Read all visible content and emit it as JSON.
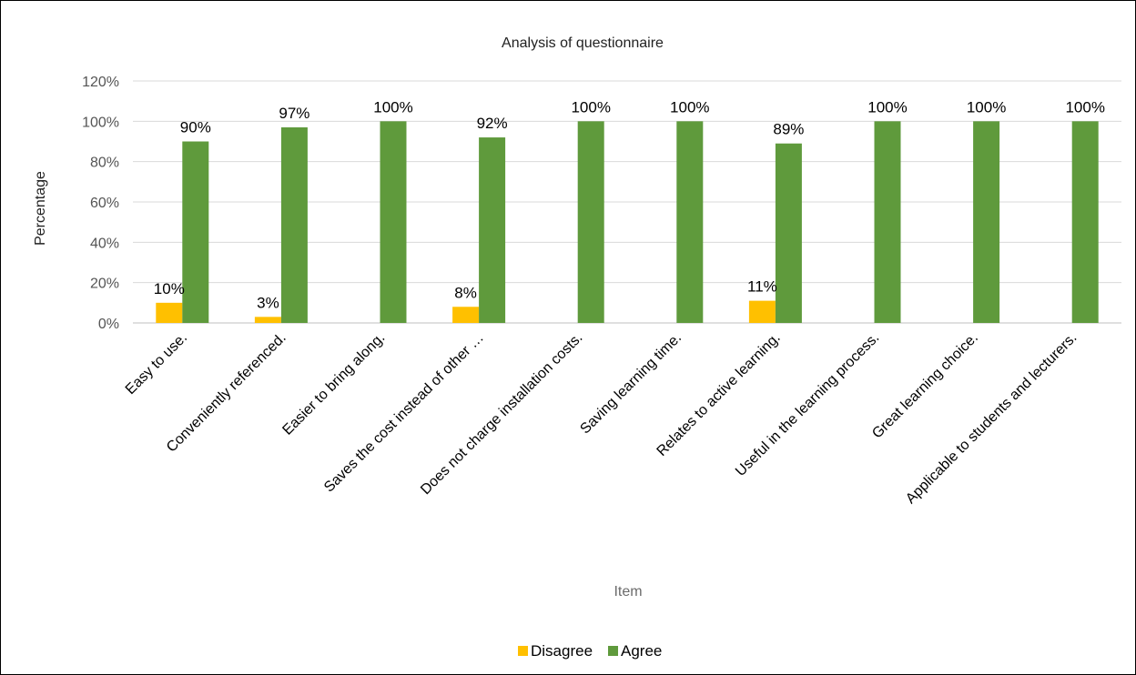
{
  "chart_data": {
    "type": "bar",
    "title": "Analysis of questionnaire",
    "xlabel": "Item",
    "ylabel": "Percentage",
    "ylim": [
      0,
      1.2
    ],
    "yticks": [
      0,
      0.2,
      0.4,
      0.6,
      0.8,
      1.0,
      1.2
    ],
    "ytick_labels": [
      "0%",
      "20%",
      "40%",
      "60%",
      "80%",
      "100%",
      "120%"
    ],
    "grid": true,
    "legend_position": "bottom",
    "categories": [
      "Easy to use.",
      "Conveniently referenced.",
      "Easier to bring along.",
      "Saves the cost instead of other …",
      "Does not charge installation costs.",
      "Saving learning time.",
      "Relates to active learning.",
      "Useful in the learning process.",
      "Great learning choice.",
      "Applicable to students and lecturers."
    ],
    "series": [
      {
        "name": "Disagree",
        "color": "#ffc000",
        "values": [
          0.1,
          0.03,
          0,
          0.08,
          0,
          0,
          0.11,
          0,
          0,
          0
        ],
        "labels": [
          "10%",
          "3%",
          "",
          "8%",
          "",
          "",
          "11%",
          "",
          "",
          ""
        ]
      },
      {
        "name": "Agree",
        "color": "#5f9a3c",
        "values": [
          0.9,
          0.97,
          1.0,
          0.92,
          1.0,
          1.0,
          0.89,
          1.0,
          1.0,
          1.0
        ],
        "labels": [
          "90%",
          "97%",
          "100%",
          "92%",
          "100%",
          "100%",
          "89%",
          "100%",
          "100%",
          "100%"
        ]
      }
    ]
  }
}
